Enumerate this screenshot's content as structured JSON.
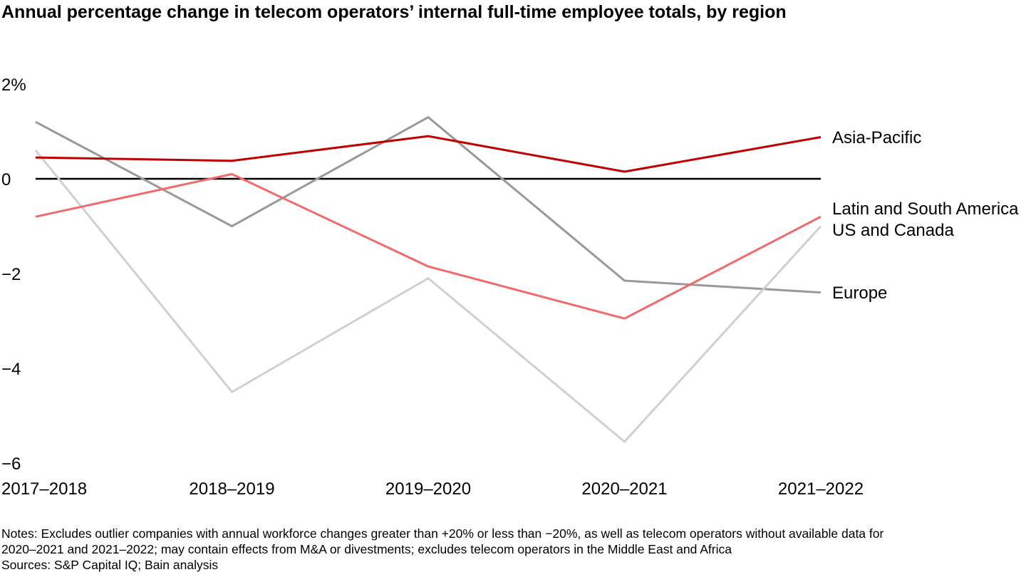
{
  "title": "Annual percentage change in telecom operators’ internal full-time employee totals, by region",
  "notes": "Notes: Excludes outlier companies with annual workforce changes greater than +20% or less than −20%, as well as telecom operators without available data for",
  "notes_line2": "2020–2021 and 2021–2022; may contain effects from M&A or divestments; excludes telecom operators in the Middle East and Africa",
  "sources": "Sources: S&P Capital IQ; Bain analysis",
  "chart_data": {
    "type": "line",
    "title": "Annual percentage change in telecom operators’ internal full-time employee totals, by region",
    "xlabel": "",
    "ylabel": "",
    "categories": [
      "2017–2018",
      "2018–2019",
      "2019–2020",
      "2020–2021",
      "2021–2022"
    ],
    "ylim": [
      -6,
      2
    ],
    "yticks": [
      {
        "value": 2,
        "label": "2%"
      },
      {
        "value": 0,
        "label": "0"
      },
      {
        "value": -2,
        "label": "−2"
      },
      {
        "value": -4,
        "label": "−4"
      },
      {
        "value": -6,
        "label": "−6"
      }
    ],
    "grid": false,
    "zero_line": true,
    "series": [
      {
        "name": "Europe",
        "color": "#999999",
        "values": [
          1.2,
          -1.0,
          1.3,
          -2.15,
          -2.4
        ]
      },
      {
        "name": "US and Canada",
        "color": "#d0d0d0",
        "values": [
          0.6,
          -4.5,
          -2.1,
          -5.55,
          -1.0
        ]
      },
      {
        "name": "Latin and South America",
        "color": "#f06b6b",
        "values": [
          -0.8,
          0.1,
          -1.85,
          -2.95,
          -0.8
        ]
      },
      {
        "name": "Asia-Pacific",
        "color": "#c00000",
        "values": [
          0.45,
          0.38,
          0.9,
          0.15,
          0.88
        ]
      }
    ]
  }
}
